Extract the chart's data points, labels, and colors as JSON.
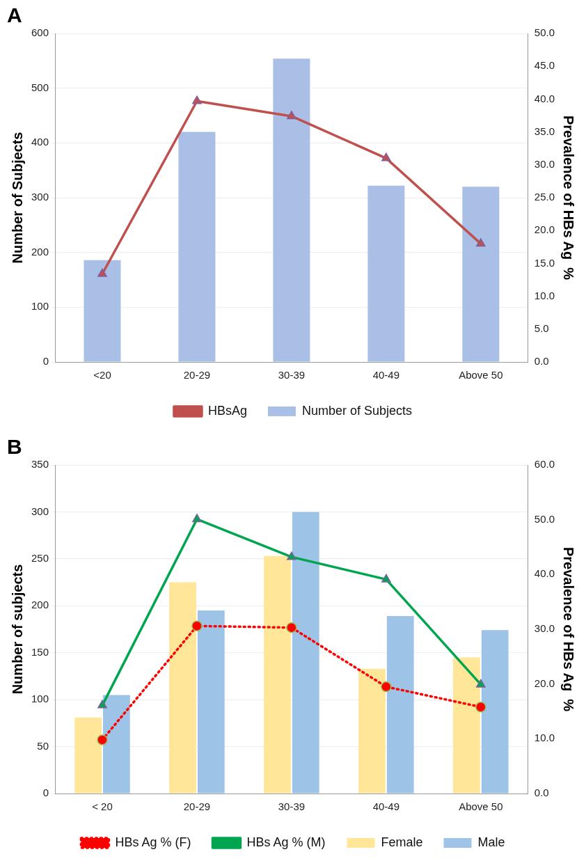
{
  "chart_data": [
    {
      "type": "bar",
      "title": "A",
      "categories": [
        "<20",
        "20-29",
        "30-39",
        "40-49",
        "Above 50"
      ],
      "ylabel": "Number of Subjects",
      "y2label": "Prevalence of HBs Ag  %",
      "ylim": [
        0,
        600
      ],
      "yticks": [
        0,
        100,
        200,
        300,
        400,
        500,
        600
      ],
      "y2lim": [
        0,
        50
      ],
      "y2ticks": [
        {
          "value": 0,
          "label": "0.0"
        },
        {
          "value": 5,
          "label": "5.0"
        },
        {
          "value": 10,
          "label": "10.0"
        },
        {
          "value": 15,
          "label": "15.0"
        },
        {
          "value": 20,
          "label": "20.0"
        },
        {
          "value": 25,
          "label": "25.0"
        },
        {
          "value": 30,
          "label": "30.0"
        },
        {
          "value": 35,
          "label": "35.0"
        },
        {
          "value": 40,
          "label": "40.0"
        },
        {
          "value": 45,
          "label": "45.0"
        },
        {
          "value": 50,
          "label": "50.0"
        }
      ],
      "grid": "y",
      "legend": "bottom",
      "series": [
        {
          "name": "Number of Subjects",
          "color": "#a9bfe6",
          "values": [
            186,
            420,
            554,
            322,
            320
          ]
        },
        {
          "name": "HBsAg",
          "type": "line",
          "axis": "y2",
          "color": "#c0504d",
          "marker": "triangle",
          "line_style": "solid",
          "values": [
            13.4,
            39.7,
            37.4,
            31.0,
            18.0
          ]
        }
      ]
    },
    {
      "type": "bar",
      "title": "B",
      "categories": [
        "< 20",
        "20-29",
        "30-39",
        "40-49",
        "Above 50"
      ],
      "ylabel": "Number of subjects",
      "y2label": "Prevalence of HBs Ag  %",
      "ylim": [
        0,
        350
      ],
      "yticks": [
        0,
        50,
        100,
        150,
        200,
        250,
        300,
        350
      ],
      "y2lim": [
        0,
        60
      ],
      "y2ticks": [
        {
          "value": 0,
          "label": "0.0"
        },
        {
          "value": 10,
          "label": "10.0"
        },
        {
          "value": 20,
          "label": "20.0"
        },
        {
          "value": 30,
          "label": "30.0"
        },
        {
          "value": 40,
          "label": "40.0"
        },
        {
          "value": 50,
          "label": "50.0"
        },
        {
          "value": 60,
          "label": "60.0"
        }
      ],
      "grid": "y",
      "legend": "bottom",
      "series": [
        {
          "name": "Female",
          "color": "#ffe699",
          "values": [
            81,
            225,
            253,
            133,
            145
          ]
        },
        {
          "name": "Male",
          "color": "#9dc3e6",
          "values": [
            105,
            195,
            300,
            189,
            174
          ]
        },
        {
          "name": "HBs Ag % (F)",
          "type": "line",
          "axis": "y2",
          "color": "#ff0000",
          "marker": "circle",
          "line_style": "dotted",
          "values": [
            9.8,
            30.6,
            30.3,
            19.5,
            15.8
          ]
        },
        {
          "name": "HBs Ag % (M)",
          "type": "line",
          "axis": "y2",
          "color": "#00a550",
          "marker": "triangle",
          "line_style": "solid",
          "values": [
            16.1,
            50.1,
            43.2,
            39.1,
            19.9
          ]
        }
      ]
    }
  ]
}
